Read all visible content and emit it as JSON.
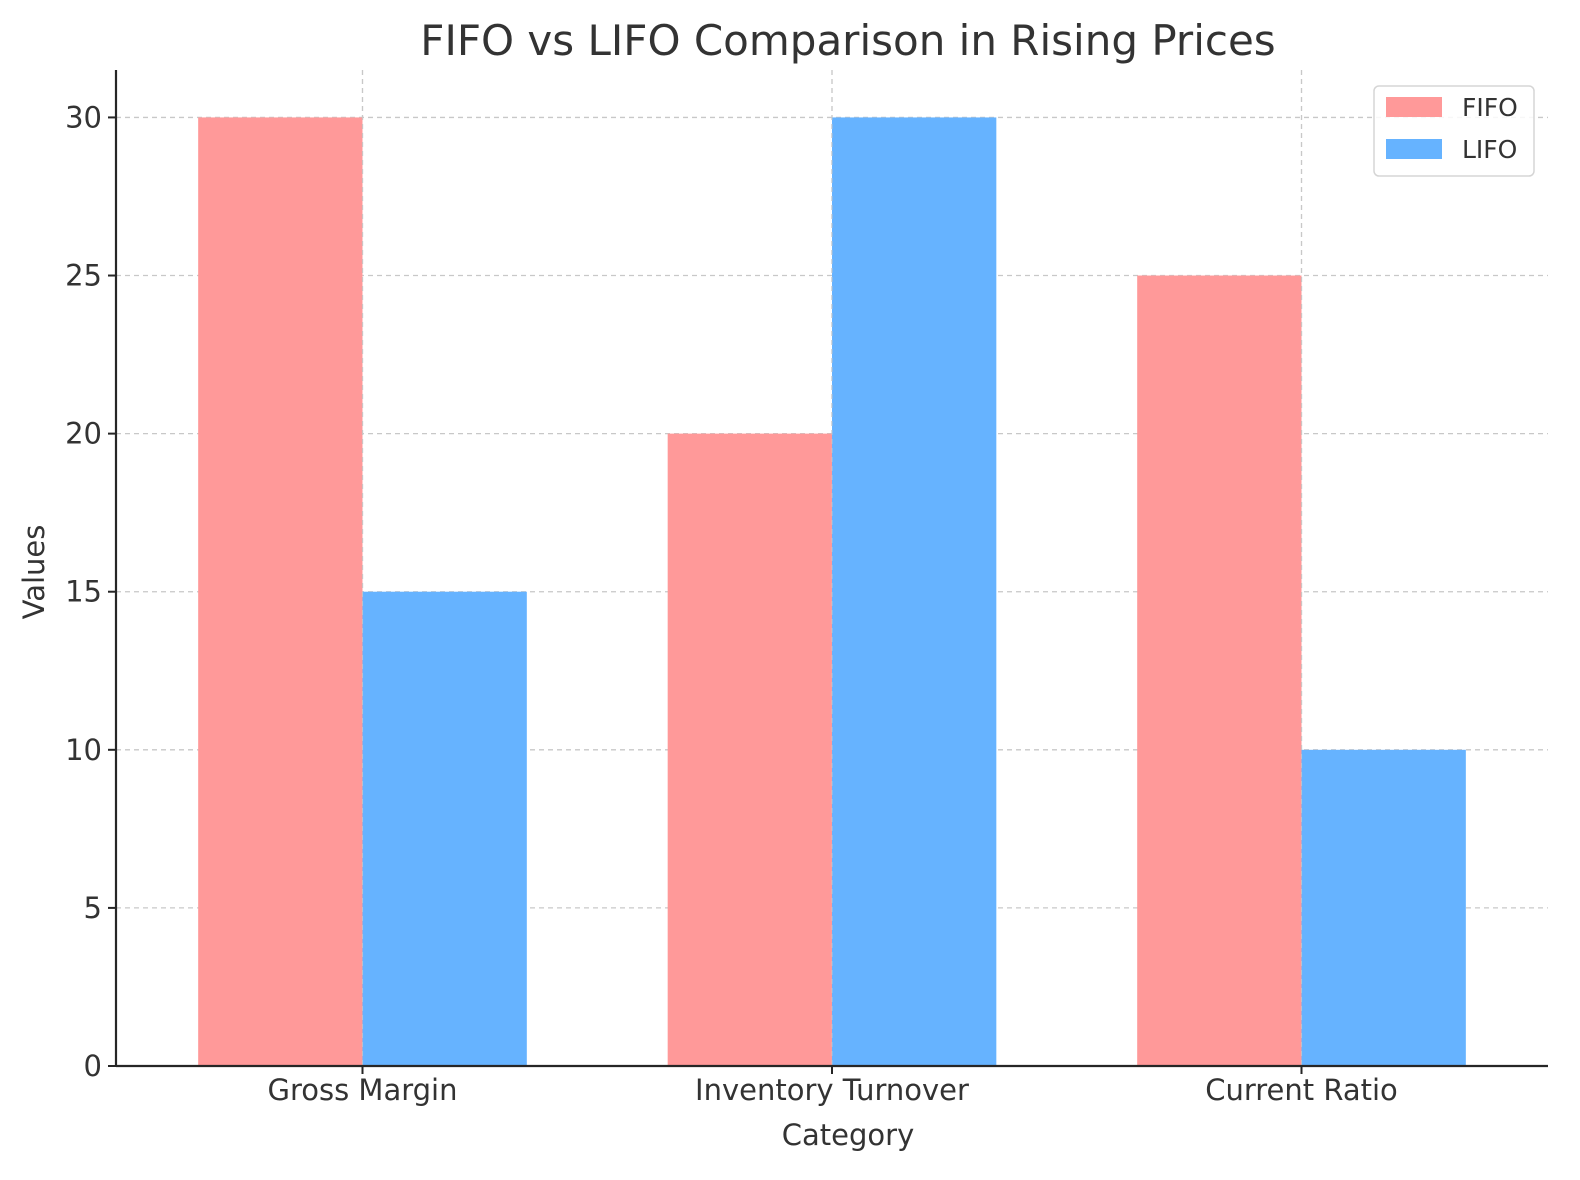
{
  "chart_data": {
    "type": "bar",
    "title": "FIFO vs LIFO Comparison in Rising Prices",
    "xlabel": "Category",
    "ylabel": "Values",
    "categories": [
      "Gross Margin",
      "Inventory Turnover",
      "Current Ratio"
    ],
    "series": [
      {
        "name": "FIFO",
        "values": [
          30,
          20,
          25
        ],
        "color": "#ff9999"
      },
      {
        "name": "LIFO",
        "values": [
          15,
          30,
          10
        ],
        "color": "#66b3ff"
      }
    ],
    "ylim": [
      0,
      31.5
    ],
    "yticks": [
      0,
      5,
      10,
      15,
      20,
      25,
      30
    ],
    "grid": true,
    "legend_position": "top-right"
  }
}
